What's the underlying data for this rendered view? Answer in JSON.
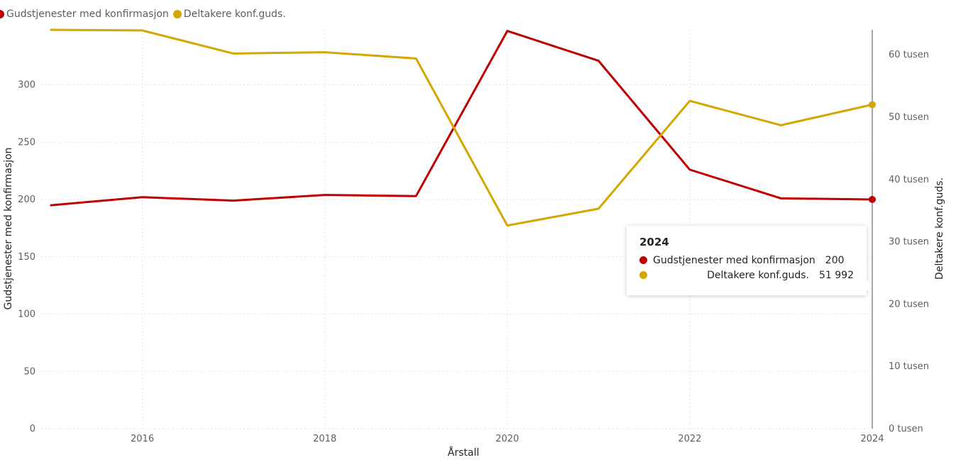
{
  "legend": {
    "items": [
      {
        "label": "Gudstjenester med konfirmasjon",
        "color": "#C00000"
      },
      {
        "label": "Deltakere konf.guds.",
        "color": "#D4A600"
      }
    ]
  },
  "chart_data": {
    "type": "line",
    "x": [
      2015,
      2016,
      2017,
      2018,
      2019,
      2020,
      2021,
      2022,
      2023,
      2024
    ],
    "x_ticks": [
      "2016",
      "2018",
      "2020",
      "2022",
      "2024"
    ],
    "xlabel": "Årstall",
    "ylabel_left": "Gudstjenester med konfirmasjon",
    "ylabel_right": "Deltakere konf.guds.",
    "ylim_left": [
      0,
      348
    ],
    "ylim_right": [
      0,
      64000
    ],
    "y_ticks_left": [
      "0",
      "50",
      "100",
      "150",
      "200",
      "250",
      "300"
    ],
    "y_ticks_right": [
      "0 tusen",
      "10 tusen",
      "20 tusen",
      "30 tusen",
      "40 tusen",
      "50 tusen",
      "60 tusen"
    ],
    "series": [
      {
        "name": "Gudstjenester med konfirmasjon",
        "axis": "left",
        "color": "#C00000",
        "values": [
          195,
          202,
          199,
          204,
          203,
          347,
          321,
          226,
          201,
          200
        ]
      },
      {
        "name": "Deltakere konf.guds.",
        "axis": "right",
        "color": "#D4A600",
        "values": [
          64000,
          63900,
          60200,
          60400,
          59400,
          32600,
          35300,
          52600,
          48700,
          51992
        ]
      }
    ],
    "grid": true,
    "legend_position": "top-left"
  },
  "tooltip": {
    "title": "2024",
    "rows": [
      {
        "label": "Gudstjenester med konfirmasjon",
        "value": "200",
        "color": "#C00000"
      },
      {
        "label": "Deltakere konf.guds.",
        "value": "51 992",
        "color": "#D4A600"
      }
    ]
  }
}
